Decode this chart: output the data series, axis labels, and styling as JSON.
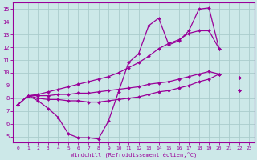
{
  "xlabel": "Windchill (Refroidissement éolien,°C)",
  "xlim": [
    -0.5,
    23.5
  ],
  "ylim": [
    4.5,
    15.5
  ],
  "xticks": [
    0,
    1,
    2,
    3,
    4,
    5,
    6,
    7,
    8,
    9,
    10,
    11,
    12,
    13,
    14,
    15,
    16,
    17,
    18,
    19,
    20,
    21,
    22,
    23
  ],
  "yticks": [
    5,
    6,
    7,
    8,
    9,
    10,
    11,
    12,
    13,
    14,
    15
  ],
  "bg_color": "#cce8e8",
  "grid_color": "#aacccc",
  "line_color": "#990099",
  "line1_y": [
    7.5,
    8.2,
    7.8,
    7.2,
    6.5,
    5.2,
    4.9,
    4.9,
    4.8,
    6.2,
    8.5,
    10.8,
    11.5,
    13.7,
    14.3,
    12.2,
    12.5,
    13.3,
    15.0,
    15.1,
    11.9,
    null,
    9.6,
    null
  ],
  "line2_y": [
    7.5,
    8.2,
    8.3,
    8.5,
    8.7,
    8.9,
    9.1,
    9.3,
    9.5,
    9.7,
    10.0,
    10.4,
    10.8,
    11.3,
    11.9,
    12.3,
    12.6,
    13.1,
    13.3,
    13.3,
    11.9,
    null,
    9.6,
    null
  ],
  "line3_y": [
    7.5,
    8.2,
    8.2,
    8.2,
    8.3,
    8.3,
    8.4,
    8.4,
    8.5,
    8.6,
    8.7,
    8.8,
    8.9,
    9.1,
    9.2,
    9.3,
    9.5,
    9.7,
    9.9,
    10.1,
    9.9,
    null,
    8.6,
    null
  ],
  "line4_y": [
    7.5,
    8.2,
    8.0,
    7.9,
    7.9,
    7.8,
    7.8,
    7.7,
    7.7,
    7.8,
    7.9,
    8.0,
    8.1,
    8.3,
    8.5,
    8.6,
    8.8,
    9.0,
    9.3,
    9.5,
    9.9,
    null,
    8.6,
    null
  ]
}
